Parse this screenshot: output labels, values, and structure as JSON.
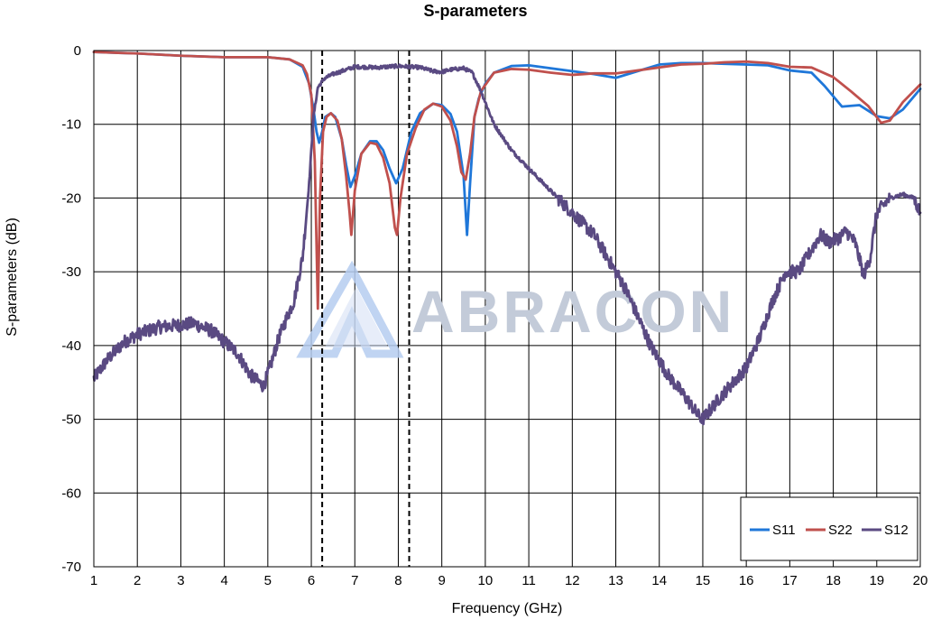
{
  "chart_data": {
    "type": "line",
    "title": "S-parameters",
    "xlabel": "Frequency (GHz)",
    "ylabel": "S-parameters (dB)",
    "xlim": [
      1,
      20
    ],
    "ylim": [
      -70,
      0
    ],
    "x_ticks": [
      "1",
      "2",
      "3",
      "4",
      "5",
      "6",
      "7",
      "8",
      "9",
      "10",
      "11",
      "12",
      "13",
      "14",
      "15",
      "16",
      "17",
      "18",
      "19",
      "20"
    ],
    "y_ticks": [
      "0",
      "-10",
      "-20",
      "-30",
      "-40",
      "-50",
      "-60",
      "-70"
    ],
    "grid": true,
    "legend_position": "bottom-right",
    "watermark": "ABRACON",
    "markers": [
      {
        "x": 6.25,
        "style": "dashed"
      },
      {
        "x": 8.25,
        "style": "dashed"
      }
    ],
    "series": [
      {
        "name": "S11",
        "color": "#1f77d9",
        "points": [
          [
            1,
            -0.2
          ],
          [
            2,
            -0.4
          ],
          [
            3,
            -0.7
          ],
          [
            4,
            -0.9
          ],
          [
            5,
            -0.9
          ],
          [
            5.5,
            -1.2
          ],
          [
            5.8,
            -2.2
          ],
          [
            5.95,
            -4.5
          ],
          [
            6.05,
            -8
          ],
          [
            6.12,
            -11
          ],
          [
            6.18,
            -12.5
          ],
          [
            6.25,
            -11
          ],
          [
            6.32,
            -9
          ],
          [
            6.45,
            -8.5
          ],
          [
            6.55,
            -9
          ],
          [
            6.7,
            -12
          ],
          [
            6.8,
            -15.5
          ],
          [
            6.9,
            -18.5
          ],
          [
            7.0,
            -17
          ],
          [
            7.15,
            -14
          ],
          [
            7.35,
            -12.3
          ],
          [
            7.5,
            -12.3
          ],
          [
            7.65,
            -13.5
          ],
          [
            7.8,
            -16
          ],
          [
            7.95,
            -18
          ],
          [
            8.1,
            -16
          ],
          [
            8.3,
            -11
          ],
          [
            8.5,
            -8.5
          ],
          [
            8.8,
            -7.2
          ],
          [
            9.0,
            -7.4
          ],
          [
            9.2,
            -8.6
          ],
          [
            9.35,
            -11
          ],
          [
            9.5,
            -17
          ],
          [
            9.58,
            -25
          ],
          [
            9.65,
            -18
          ],
          [
            9.75,
            -9
          ],
          [
            9.85,
            -6.5
          ],
          [
            10.0,
            -4.5
          ],
          [
            10.2,
            -3
          ],
          [
            10.6,
            -2.1
          ],
          [
            11.0,
            -2
          ],
          [
            11.5,
            -2.4
          ],
          [
            12.0,
            -2.8
          ],
          [
            12.5,
            -3.2
          ],
          [
            13.0,
            -3.7
          ],
          [
            13.5,
            -2.8
          ],
          [
            14.0,
            -1.9
          ],
          [
            14.5,
            -1.7
          ],
          [
            15.0,
            -1.7
          ],
          [
            15.5,
            -1.8
          ],
          [
            16.0,
            -1.9
          ],
          [
            16.5,
            -2
          ],
          [
            17.0,
            -2.7
          ],
          [
            17.5,
            -3
          ],
          [
            17.8,
            -4.8
          ],
          [
            18.2,
            -7.6
          ],
          [
            18.6,
            -7.4
          ],
          [
            19.0,
            -8.9
          ],
          [
            19.3,
            -9.2
          ],
          [
            19.6,
            -8
          ],
          [
            20.0,
            -5.2
          ]
        ]
      },
      {
        "name": "S22",
        "color": "#c0504d",
        "points": [
          [
            1,
            -0.2
          ],
          [
            2,
            -0.4
          ],
          [
            3,
            -0.7
          ],
          [
            4,
            -0.9
          ],
          [
            5,
            -0.9
          ],
          [
            5.5,
            -1.2
          ],
          [
            5.8,
            -2
          ],
          [
            5.9,
            -3.2
          ],
          [
            6.0,
            -6
          ],
          [
            6.08,
            -15
          ],
          [
            6.15,
            -35
          ],
          [
            6.2,
            -20
          ],
          [
            6.27,
            -11
          ],
          [
            6.35,
            -9
          ],
          [
            6.45,
            -8.5
          ],
          [
            6.6,
            -9.5
          ],
          [
            6.7,
            -12
          ],
          [
            6.8,
            -17
          ],
          [
            6.88,
            -22
          ],
          [
            6.92,
            -25
          ],
          [
            7.0,
            -19
          ],
          [
            7.15,
            -14
          ],
          [
            7.35,
            -12.5
          ],
          [
            7.5,
            -12.7
          ],
          [
            7.65,
            -14.5
          ],
          [
            7.8,
            -18
          ],
          [
            7.92,
            -24
          ],
          [
            7.97,
            -25
          ],
          [
            8.05,
            -20
          ],
          [
            8.2,
            -14
          ],
          [
            8.4,
            -10.5
          ],
          [
            8.6,
            -8
          ],
          [
            8.8,
            -7.2
          ],
          [
            9.0,
            -7.6
          ],
          [
            9.2,
            -9.5
          ],
          [
            9.35,
            -13
          ],
          [
            9.45,
            -16.5
          ],
          [
            9.55,
            -17.5
          ],
          [
            9.65,
            -14
          ],
          [
            9.75,
            -9
          ],
          [
            9.9,
            -5.5
          ],
          [
            10.2,
            -3
          ],
          [
            10.6,
            -2.5
          ],
          [
            11.0,
            -2.6
          ],
          [
            11.5,
            -3
          ],
          [
            12.0,
            -3.3
          ],
          [
            12.5,
            -3.1
          ],
          [
            13.0,
            -3.1
          ],
          [
            13.5,
            -2.7
          ],
          [
            14.0,
            -2.3
          ],
          [
            14.5,
            -1.9
          ],
          [
            15.0,
            -1.8
          ],
          [
            15.5,
            -1.6
          ],
          [
            16.0,
            -1.5
          ],
          [
            16.5,
            -1.7
          ],
          [
            17.0,
            -2.2
          ],
          [
            17.5,
            -2.3
          ],
          [
            18.0,
            -3.6
          ],
          [
            18.4,
            -5.5
          ],
          [
            18.8,
            -7.5
          ],
          [
            19.1,
            -9.8
          ],
          [
            19.3,
            -9.5
          ],
          [
            19.6,
            -7
          ],
          [
            20.0,
            -4.6
          ]
        ]
      },
      {
        "name": "S12",
        "color": "#5a4a82",
        "noisy": true,
        "points": [
          [
            1,
            -44.5
          ],
          [
            1.3,
            -42
          ],
          [
            1.7,
            -39.5
          ],
          [
            2,
            -38.5
          ],
          [
            2.5,
            -37.5
          ],
          [
            3,
            -37.2
          ],
          [
            3.3,
            -37
          ],
          [
            3.7,
            -38
          ],
          [
            4,
            -39.5
          ],
          [
            4.3,
            -41
          ],
          [
            4.6,
            -44
          ],
          [
            4.9,
            -45.5
          ],
          [
            5.05,
            -43
          ],
          [
            5.25,
            -39
          ],
          [
            5.45,
            -36
          ],
          [
            5.6,
            -34
          ],
          [
            5.8,
            -28
          ],
          [
            5.95,
            -18
          ],
          [
            6.05,
            -9
          ],
          [
            6.15,
            -5
          ],
          [
            6.3,
            -3.8
          ],
          [
            6.5,
            -3.2
          ],
          [
            6.8,
            -2.6
          ],
          [
            7.0,
            -2.2
          ],
          [
            7.5,
            -2.3
          ],
          [
            8.0,
            -2.1
          ],
          [
            8.5,
            -2.3
          ],
          [
            8.8,
            -2.8
          ],
          [
            9.0,
            -2.9
          ],
          [
            9.2,
            -2.6
          ],
          [
            9.5,
            -2.4
          ],
          [
            9.7,
            -3
          ],
          [
            9.9,
            -5.5
          ],
          [
            10.2,
            -10
          ],
          [
            10.6,
            -13.5
          ],
          [
            11.0,
            -16
          ],
          [
            11.5,
            -19
          ],
          [
            12.0,
            -22
          ],
          [
            12.5,
            -25
          ],
          [
            12.8,
            -28
          ],
          [
            13.2,
            -32
          ],
          [
            13.5,
            -36
          ],
          [
            13.8,
            -40
          ],
          [
            14.2,
            -44
          ],
          [
            14.6,
            -47
          ],
          [
            14.9,
            -49.5
          ],
          [
            15.0,
            -50
          ],
          [
            15.2,
            -48.5
          ],
          [
            15.4,
            -47
          ],
          [
            15.7,
            -45
          ],
          [
            16.0,
            -43
          ],
          [
            16.3,
            -39
          ],
          [
            16.6,
            -34
          ],
          [
            16.9,
            -30
          ],
          [
            17.2,
            -30
          ],
          [
            17.5,
            -27
          ],
          [
            17.7,
            -25
          ],
          [
            17.9,
            -26
          ],
          [
            18.1,
            -25.5
          ],
          [
            18.3,
            -24.5
          ],
          [
            18.5,
            -26
          ],
          [
            18.7,
            -30.5
          ],
          [
            18.85,
            -28
          ],
          [
            19.0,
            -22
          ],
          [
            19.3,
            -20
          ],
          [
            19.6,
            -19.5
          ],
          [
            19.85,
            -20
          ],
          [
            20.0,
            -22
          ]
        ]
      }
    ]
  }
}
